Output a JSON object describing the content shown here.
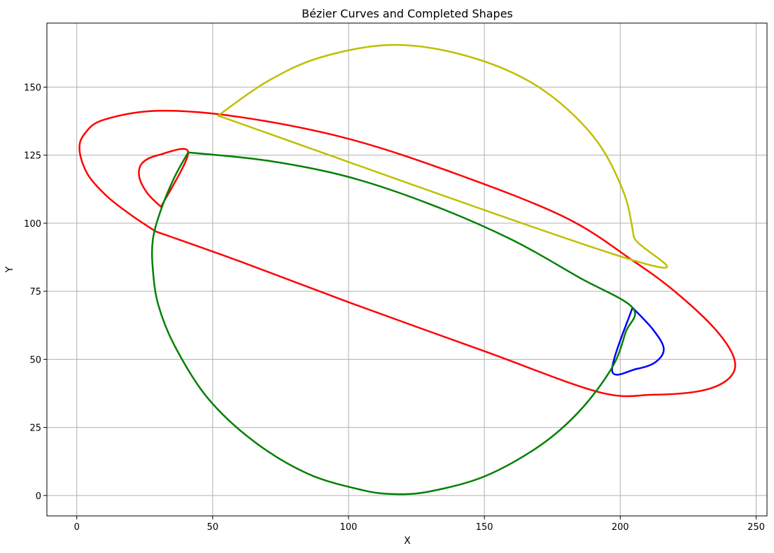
{
  "chart_data": {
    "type": "line",
    "title": "Bézier Curves and Completed Shapes",
    "xlabel": "X",
    "ylabel": "Y",
    "xlim": [
      -11,
      254
    ],
    "ylim": [
      -7.5,
      173.5
    ],
    "xticks": [
      0,
      50,
      100,
      150,
      200,
      250
    ],
    "yticks": [
      0,
      25,
      50,
      75,
      100,
      125,
      150
    ],
    "grid": true,
    "series": [
      {
        "color": "#ff0000",
        "points": [
          [
            29,
            97
          ],
          [
            20,
            103
          ],
          [
            11,
            110
          ],
          [
            4,
            118
          ],
          [
            1,
            127
          ],
          [
            3,
            133
          ],
          [
            10,
            138
          ],
          [
            30,
            141.3
          ],
          [
            60,
            139
          ],
          [
            100,
            131
          ],
          [
            140,
            118
          ],
          [
            180,
            102
          ],
          [
            205,
            86
          ],
          [
            220,
            75
          ],
          [
            235,
            61
          ],
          [
            242,
            50
          ],
          [
            240,
            43
          ],
          [
            230,
            38.5
          ],
          [
            212,
            37
          ],
          [
            192,
            38
          ],
          [
            150,
            53
          ],
          [
            100,
            71
          ],
          [
            60,
            86
          ],
          [
            29,
            97
          ]
        ]
      },
      {
        "color": "#ff0000",
        "points": [
          [
            31,
            106
          ],
          [
            26,
            111
          ],
          [
            23,
            117
          ],
          [
            24,
            122
          ],
          [
            30,
            125
          ],
          [
            41,
            126
          ],
          [
            31,
            106
          ]
        ]
      },
      {
        "color": "#bfbf00",
        "points": [
          [
            52,
            139.5
          ],
          [
            70,
            152
          ],
          [
            90,
            161
          ],
          [
            117,
            165.5
          ],
          [
            145,
            161
          ],
          [
            170,
            150
          ],
          [
            190,
            132
          ],
          [
            201,
            112
          ],
          [
            205,
            95
          ],
          [
            206,
            86
          ],
          [
            52,
            139.5
          ]
        ]
      },
      {
        "color": "#0000ff",
        "points": [
          [
            204.5,
            69
          ],
          [
            212,
            61
          ],
          [
            216,
            54
          ],
          [
            213,
            49
          ],
          [
            206,
            46.5
          ],
          [
            197,
            46
          ],
          [
            204.5,
            69
          ]
        ]
      },
      {
        "color": "#008000",
        "points": [
          [
            41,
            126
          ],
          [
            36,
            117
          ],
          [
            31,
            105
          ],
          [
            28,
            94
          ],
          [
            28,
            83
          ],
          [
            30,
            70
          ],
          [
            36,
            55
          ],
          [
            48,
            36
          ],
          [
            65,
            20
          ],
          [
            85,
            8
          ],
          [
            105,
            2
          ],
          [
            117,
            0.5
          ],
          [
            130,
            1.5
          ],
          [
            150,
            7
          ],
          [
            170,
            18
          ],
          [
            185,
            31
          ],
          [
            197,
            47
          ],
          [
            202,
            60
          ],
          [
            204.5,
            69
          ],
          [
            185,
            80
          ],
          [
            160,
            94
          ],
          [
            130,
            107
          ],
          [
            100,
            117
          ],
          [
            70,
            123
          ],
          [
            41,
            126
          ]
        ]
      }
    ]
  }
}
